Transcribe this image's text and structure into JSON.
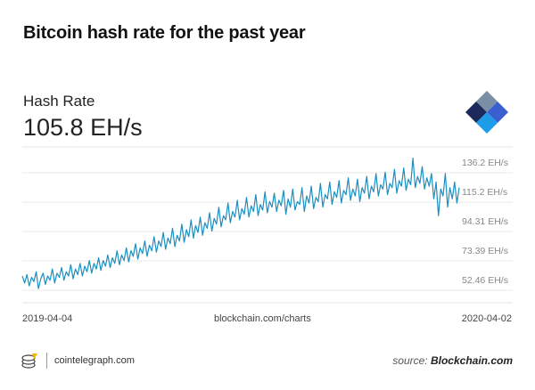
{
  "title": "Bitcoin hash rate for the past year",
  "metric": {
    "label": "Hash Rate",
    "value": "105.8 EH/s"
  },
  "chart_data": {
    "type": "line",
    "series": [
      {
        "name": "Hash Rate",
        "color": "#1a8fc1",
        "values": [
          55,
          50,
          56,
          48,
          54,
          51,
          58,
          46,
          53,
          57,
          49,
          55,
          52,
          60,
          50,
          57,
          54,
          61,
          52,
          58,
          55,
          63,
          53,
          60,
          56,
          64,
          55,
          62,
          58,
          66,
          57,
          64,
          60,
          68,
          59,
          66,
          62,
          70,
          61,
          68,
          64,
          73,
          63,
          70,
          66,
          75,
          65,
          73,
          69,
          78,
          67,
          75,
          71,
          80,
          69,
          77,
          73,
          83,
          72,
          80,
          76,
          86,
          74,
          82,
          78,
          89,
          76,
          84,
          80,
          92,
          79,
          88,
          83,
          95,
          82,
          91,
          86,
          97,
          84,
          93,
          89,
          100,
          87,
          96,
          92,
          104,
          90,
          98,
          95,
          107,
          93,
          101,
          97,
          109,
          95,
          103,
          99,
          111,
          97,
          105,
          101,
          113,
          98,
          106,
          102,
          115,
          100,
          108,
          104,
          114,
          101,
          109,
          105,
          116,
          99,
          110,
          104,
          117,
          102,
          108,
          106,
          118,
          101,
          112,
          107,
          119,
          103,
          111,
          108,
          121,
          104,
          113,
          110,
          122,
          106,
          115,
          111,
          123,
          107,
          116,
          113,
          125,
          109,
          117,
          112,
          124,
          108,
          118,
          114,
          126,
          110,
          119,
          115,
          128,
          112,
          120,
          117,
          129,
          113,
          121,
          118,
          131,
          114,
          123,
          119,
          132,
          116,
          124,
          120,
          139,
          118,
          126,
          121,
          133,
          117,
          125,
          119,
          128,
          110,
          122,
          98,
          117,
          112,
          128,
          104,
          118,
          110,
          122,
          107,
          118
        ],
        "x_start": "2019-04-04",
        "x_end": "2020-04-02"
      }
    ],
    "yticks": [
      {
        "value": 136.2,
        "label": "136.2 EH/s"
      },
      {
        "value": 115.2,
        "label": "115.2 EH/s"
      },
      {
        "value": 94.31,
        "label": "94.31 EH/s"
      },
      {
        "value": 73.39,
        "label": "73.39 EH/s"
      },
      {
        "value": 52.46,
        "label": "52.46 EH/s"
      }
    ],
    "ylim": [
      41,
      147
    ],
    "grid": true,
    "xlabels": [
      "2019-04-04",
      "2020-04-02"
    ],
    "center_label": "blockchain.com/charts"
  },
  "footer": {
    "brand": "cointelegraph.com",
    "source_prefix": "source:",
    "source_name": "Blockchain.com"
  }
}
